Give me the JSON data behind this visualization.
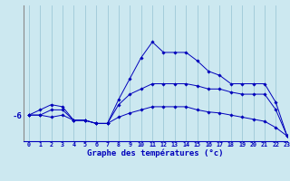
{
  "background_color": "#cce8f0",
  "line_color": "#0000bb",
  "xlabel": "Graphe des températures (°c)",
  "xlim": [
    -0.5,
    23
  ],
  "ylim": [
    -8.5,
    4.5
  ],
  "hours": [
    0,
    1,
    2,
    3,
    4,
    5,
    6,
    7,
    8,
    9,
    10,
    11,
    12,
    13,
    14,
    15,
    16,
    17,
    18,
    19,
    20,
    21,
    22,
    23
  ],
  "s1": [
    -6.0,
    -6.0,
    -6.2,
    -6.0,
    -6.5,
    -6.5,
    -6.8,
    -6.8,
    -6.2,
    -5.8,
    -5.5,
    -5.2,
    -5.2,
    -5.2,
    -5.2,
    -5.5,
    -5.7,
    -5.8,
    -6.0,
    -6.2,
    -6.4,
    -6.6,
    -7.2,
    -8.0
  ],
  "s2": [
    -6.0,
    -6.0,
    -5.5,
    -5.5,
    -6.5,
    -6.5,
    -6.8,
    -6.8,
    -5.0,
    -4.0,
    -3.5,
    -3.0,
    -3.0,
    -3.0,
    -3.0,
    -3.2,
    -3.5,
    -3.5,
    -3.8,
    -4.0,
    -4.0,
    -4.0,
    -5.5,
    -8.0
  ],
  "s3": [
    -6.0,
    -5.5,
    -5.0,
    -5.2,
    -6.5,
    -6.5,
    -6.8,
    -6.8,
    -4.5,
    -2.5,
    -0.5,
    1.0,
    0.0,
    0.0,
    0.0,
    -0.8,
    -1.8,
    -2.2,
    -3.0,
    -3.0,
    -3.0,
    -3.0,
    -4.8,
    -8.0
  ],
  "ytick_values": [
    -6
  ],
  "ytick_labels": [
    "-6"
  ],
  "grid_color": "#9ec8d8"
}
